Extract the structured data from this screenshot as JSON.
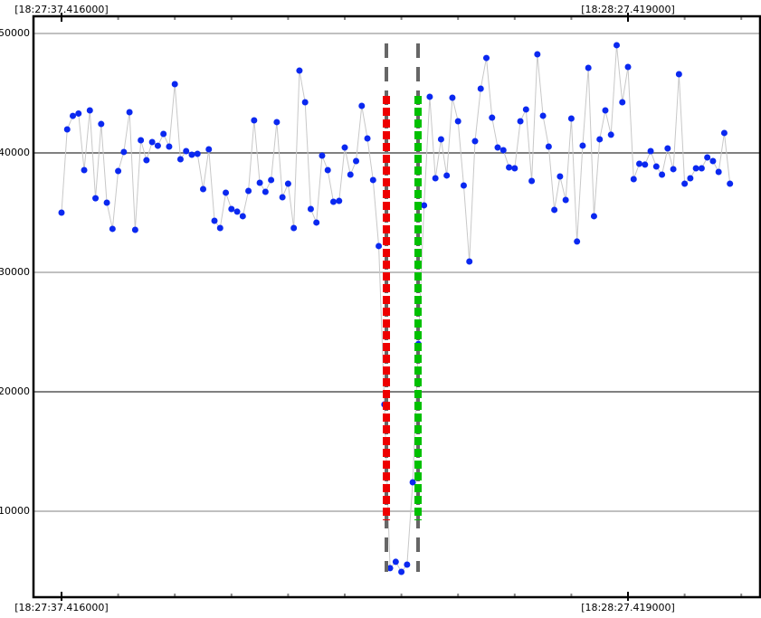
{
  "chart_data": {
    "type": "line",
    "series": [
      {
        "line_color": "#c8c8c8",
        "color": "#0a28f0",
        "values": [
          35000,
          41970,
          43100,
          43300,
          38560,
          43560,
          36200,
          42420,
          35830,
          33640,
          38480,
          40080,
          43410,
          33560,
          41060,
          39390,
          40910,
          40600,
          41590,
          40530,
          45760,
          39470,
          40150,
          39850,
          39920,
          36970,
          40300,
          34320,
          33710,
          36670,
          35300,
          35080,
          34700,
          36820,
          42730,
          37500,
          36740,
          37730,
          42580,
          36290,
          37420,
          33710,
          46890,
          44240,
          35300,
          34170,
          39770,
          38560,
          35910,
          35980,
          40450,
          38180,
          39320,
          43940,
          41210,
          37730,
          32200,
          18940,
          5230,
          5760,
          4920,
          5530,
          12420,
          24000,
          35610,
          44700,
          37880,
          41140,
          38110,
          44620,
          42650,
          37270,
          30910,
          40980,
          45380,
          47950,
          42950,
          40450,
          40230,
          38790,
          38710,
          42650,
          43640,
          37650,
          48260,
          43110,
          40530,
          35230,
          38030,
          36060,
          42880,
          32580,
          40610,
          47120,
          34700,
          41140,
          43560,
          41520,
          49020,
          44240,
          47200,
          37800,
          39090,
          39020,
          40150,
          38860,
          38180,
          40380,
          38640,
          46590,
          37420,
          37880,
          38710,
          38710,
          39620,
          39320,
          38410,
          41670,
          37420
        ]
      }
    ],
    "xlim": [
      -4.95,
      123.32
    ],
    "xticks": [
      {
        "value": 0,
        "label": "[18:27:37.416000]"
      },
      {
        "value": 100,
        "label": "[18:28:27.419000]"
      }
    ],
    "xminorticks": [
      10,
      20,
      30,
      40,
      50,
      60,
      70,
      80,
      90,
      110,
      120
    ],
    "ylim": [
      2800,
      51440
    ],
    "yticks": [
      10000,
      20000,
      30000,
      40000,
      50000
    ],
    "grid": true,
    "grid_colors": [
      "#c0c0c0",
      "#808080",
      "#c0c0c0",
      "#808080",
      "#c0c0c0"
    ],
    "markers": [
      {
        "x": 57.35,
        "color": "#ee0000"
      },
      {
        "x": 62.94,
        "color": "#00c000"
      }
    ]
  }
}
